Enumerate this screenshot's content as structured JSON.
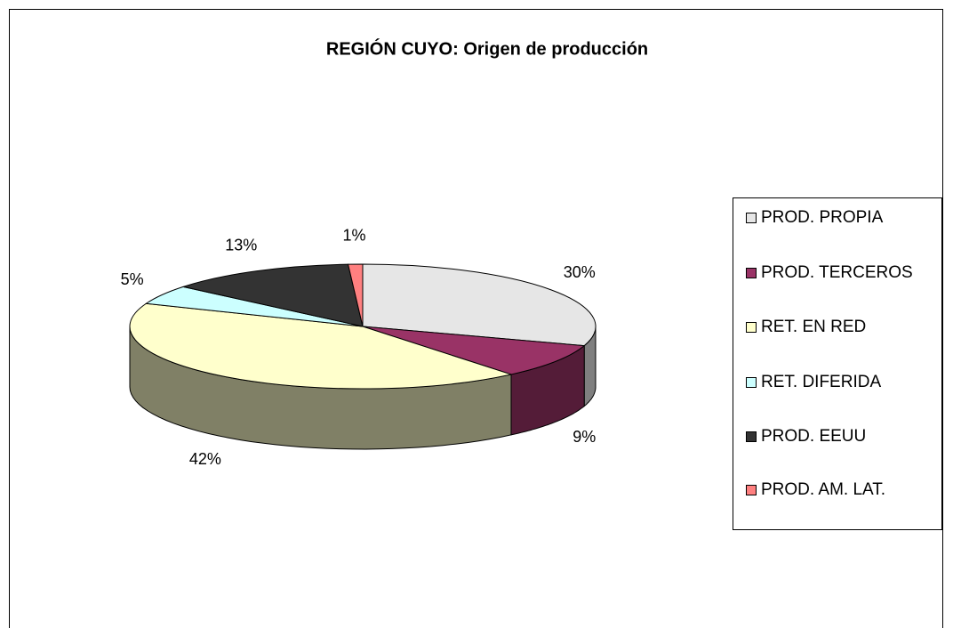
{
  "chart_data": {
    "type": "pie3d",
    "title": "REGIÓN CUYO: Origen de producción",
    "categories": [
      "PROD. PROPIA",
      "PROD. TERCEROS",
      "RET. EN RED",
      "RET. DIFERIDA",
      "PROD. EEUU",
      "PROD. AM. LAT."
    ],
    "values": [
      30,
      9,
      42,
      5,
      13,
      1
    ],
    "value_labels": [
      "30%",
      "9%",
      "42%",
      "5%",
      "13%",
      "1%"
    ],
    "colors": [
      "#e6e6e6",
      "#993366",
      "#ffffcc",
      "#ccffff",
      "#333333",
      "#ff8080"
    ],
    "legend": "right"
  }
}
